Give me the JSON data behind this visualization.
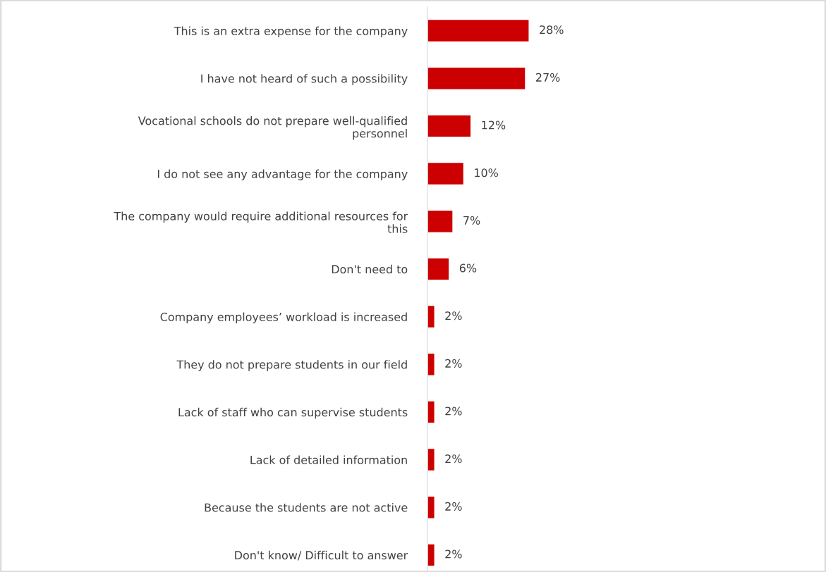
{
  "chart_data": {
    "type": "bar",
    "orientation": "horizontal",
    "categories": [
      "This is an extra expense for the company",
      "I have not heard of such a possibility",
      "Vocational schools do not prepare well-qualified personnel",
      "I do not see any advantage for the company",
      "The company would require additional resources for this",
      "Don't need to",
      "Company employees’ workload is increased",
      "They do not prepare students in our field",
      "Lack of staff who can supervise students",
      "Lack of detailed information",
      "Because the students are not active",
      "Don't know/ Difficult to answer"
    ],
    "values": [
      28,
      27,
      12,
      10,
      7,
      6,
      2,
      2,
      2,
      2,
      2,
      2
    ],
    "value_labels": [
      "28%",
      "27%",
      "12%",
      "10%",
      "7%",
      "6%",
      "2%",
      "2%",
      "2%",
      "2%",
      "2%",
      "2%"
    ],
    "color": "#cc0000",
    "grid": false,
    "legend": false
  }
}
